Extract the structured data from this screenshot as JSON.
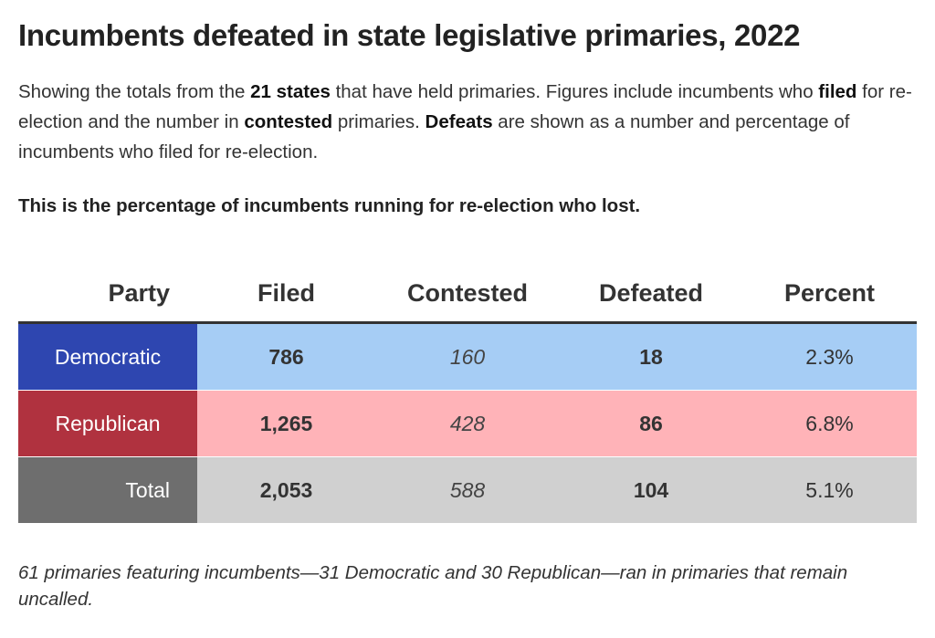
{
  "title": "Incumbents defeated in state legislative primaries, 2022",
  "description": {
    "p1": "Showing the totals from the ",
    "b1": "21 states",
    "p2": " that have held primaries. Figures include incumbents who ",
    "b2": "filed",
    "p3": " for re-election and the number in ",
    "b3": "contested",
    "p4": " primaries. ",
    "b4": "Defeats",
    "p5": " are shown as a number and percentage of incumbents who filed for re-election."
  },
  "subhead": "This is the percentage of incumbents running for re-election who lost.",
  "colors": {
    "democratic_label": "#2e46b0",
    "democratic_row": "#a6cdf5",
    "republican_label": "#b0323f",
    "republican_row": "#ffb3b8",
    "total_label": "#6e6e6e",
    "total_row": "#d0d0d0"
  },
  "chart_data": {
    "type": "table",
    "columns": [
      "Party",
      "Filed",
      "Contested",
      "Defeated",
      "Percent"
    ],
    "rows": [
      {
        "party": "Democratic",
        "filed": "786",
        "contested": "160",
        "defeated": "18",
        "percent": "2.3%"
      },
      {
        "party": "Republican",
        "filed": "1,265",
        "contested": "428",
        "defeated": "86",
        "percent": "6.8%"
      },
      {
        "party": "Total",
        "filed": "2,053",
        "contested": "588",
        "defeated": "104",
        "percent": "5.1%"
      }
    ]
  },
  "footnote": "61 primaries featuring incumbents—31 Democratic and 30 Republican—ran in primaries that remain uncalled."
}
